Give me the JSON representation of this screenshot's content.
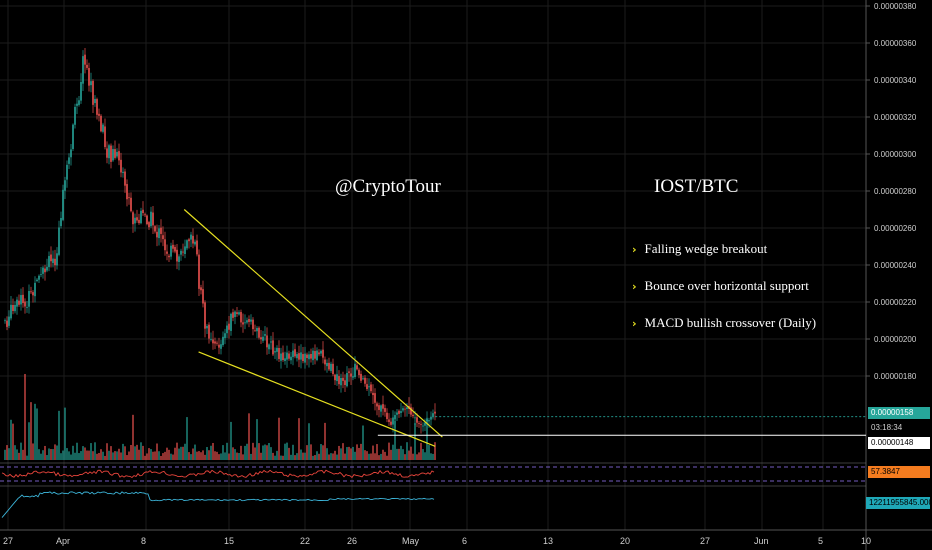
{
  "annotations": {
    "handle": "@CryptoTour",
    "pair": "IOST/BTC",
    "bullets": [
      "Falling wedge breakout",
      "Bounce over horizontal support",
      "MACD bullish crossover (Daily)"
    ]
  },
  "price_tags": {
    "last_price": "0.00000158",
    "countdown": "03:18:34",
    "support": "0.00000148",
    "rsi_value": "57.3847",
    "macd_value": "12211955845.0000"
  },
  "colors": {
    "background": "#000000",
    "up_candle": "#26a69a",
    "down_candle": "#ef5350",
    "wedge_lines": "#e6e020",
    "rsi_line": "#e8453c",
    "macd_line": "#3cb4d8",
    "last_price_bg": "#26a69a",
    "rsi_tag_bg": "#f57c1f",
    "macd_tag_bg": "#1fa8b8"
  },
  "chart_data": {
    "type": "candlestick",
    "pair": "IOST/BTC",
    "y_axis_ticks": [
      "0.00000380",
      "0.00000360",
      "0.00000340",
      "0.00000320",
      "0.00000300",
      "0.00000280",
      "0.00000260",
      "0.00000240",
      "0.00000220",
      "0.00000200",
      "0.00000180"
    ],
    "ylim": [
      1.48e-06,
      3.8e-06
    ],
    "x_axis_ticks": [
      "27",
      "Apr",
      "8",
      "15",
      "22",
      "26",
      "May",
      "6",
      "13",
      "20",
      "27",
      "Jun",
      "5",
      "10"
    ],
    "close_path": [
      {
        "date": "Mar 27",
        "close": 2.1e-06
      },
      {
        "date": "Mar 31",
        "close": 2.25e-06
      },
      {
        "date": "Apr 3",
        "close": 2.45e-06
      },
      {
        "date": "Apr 5",
        "close": 3e-06
      },
      {
        "date": "Apr 7",
        "close": 3.52e-06
      },
      {
        "date": "Apr 8",
        "close": 3.35e-06
      },
      {
        "date": "Apr 10",
        "close": 3.05e-06
      },
      {
        "date": "Apr 12",
        "close": 2.95e-06
      },
      {
        "date": "Apr 14",
        "close": 2.62e-06
      },
      {
        "date": "Apr 16",
        "close": 2.67e-06
      },
      {
        "date": "Apr 18",
        "close": 2.52e-06
      },
      {
        "date": "Apr 20",
        "close": 2.42e-06
      },
      {
        "date": "Apr 22",
        "close": 2.62e-06
      },
      {
        "date": "Apr 24",
        "close": 2.05e-06
      },
      {
        "date": "Apr 26",
        "close": 1.96e-06
      },
      {
        "date": "Apr 28",
        "close": 2.15e-06
      },
      {
        "date": "May 1",
        "close": 2.05e-06
      },
      {
        "date": "May 4",
        "close": 1.92e-06
      },
      {
        "date": "May 7",
        "close": 1.9e-06
      },
      {
        "date": "May 10",
        "close": 1.92e-06
      },
      {
        "date": "May 13",
        "close": 1.75e-06
      },
      {
        "date": "May 15",
        "close": 1.85e-06
      },
      {
        "date": "May 17",
        "close": 1.7e-06
      },
      {
        "date": "May 20",
        "close": 1.54e-06
      },
      {
        "date": "May 22",
        "close": 1.63e-06
      },
      {
        "date": "May 24",
        "close": 1.53e-06
      },
      {
        "date": "May 26",
        "close": 1.58e-06
      }
    ],
    "wedge": {
      "upper": [
        {
          "date": "Apr 21",
          "price": 2.7e-06
        },
        {
          "date": "May 27",
          "price": 1.47e-06
        }
      ],
      "lower": [
        {
          "date": "Apr 23",
          "price": 1.93e-06
        },
        {
          "date": "May 26",
          "price": 1.42e-06
        }
      ]
    },
    "support_level": 1.48e-06,
    "last_price": 1.58e-06,
    "indicators": [
      "Volume",
      "RSI",
      "MACD"
    ]
  }
}
